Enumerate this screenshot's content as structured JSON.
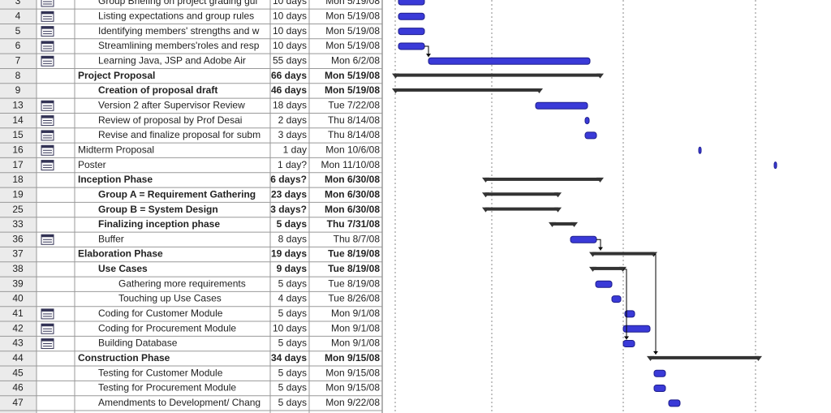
{
  "rows": [
    {
      "id": "3",
      "name": "Group Briefing on project grading gui",
      "duration": "10 days",
      "start": "Mon 5/19/08"
    },
    {
      "id": "4",
      "name": "Listing expectations and group rules",
      "duration": "10 days",
      "start": "Mon 5/19/08"
    },
    {
      "id": "5",
      "name": "Identifying members' strengths and w",
      "duration": "10 days",
      "start": "Mon 5/19/08"
    },
    {
      "id": "6",
      "name": "Streamlining members'roles and resp",
      "duration": "10 days",
      "start": "Mon 5/19/08"
    },
    {
      "id": "7",
      "name": "Learning Java, JSP and Adobe Air",
      "duration": "55 days",
      "start": "Mon 6/2/08"
    },
    {
      "id": "8",
      "name": "Project Proposal",
      "duration": "66 days",
      "start": "Mon 5/19/08"
    },
    {
      "id": "9",
      "name": "Creation of proposal draft",
      "duration": "46 days",
      "start": "Mon 5/19/08"
    },
    {
      "id": "13",
      "name": "Version 2 after Supervisor Review",
      "duration": "18 days",
      "start": "Tue 7/22/08"
    },
    {
      "id": "14",
      "name": "Review of proposal by Prof Desai",
      "duration": "2 days",
      "start": "Thu 8/14/08"
    },
    {
      "id": "15",
      "name": "Revise and finalize proposal for subm",
      "duration": "3 days",
      "start": "Thu 8/14/08"
    },
    {
      "id": "16",
      "name": "Midterm Proposal",
      "duration": "1 day",
      "start": "Mon 10/6/08"
    },
    {
      "id": "17",
      "name": "Poster",
      "duration": "1 day?",
      "start": "Mon 11/10/08"
    },
    {
      "id": "18",
      "name": "Inception Phase",
      "duration": "6 days?",
      "start": "Mon 6/30/08"
    },
    {
      "id": "19",
      "name": "Group A = Requirement Gathering",
      "duration": "23 days",
      "start": "Mon 6/30/08"
    },
    {
      "id": "25",
      "name": "Group B = System Design",
      "duration": "3 days?",
      "start": "Mon 6/30/08"
    },
    {
      "id": "33",
      "name": "Finalizing inception phase",
      "duration": "5 days",
      "start": "Thu 7/31/08"
    },
    {
      "id": "36",
      "name": "Buffer",
      "duration": "8 days",
      "start": "Thu 8/7/08"
    },
    {
      "id": "37",
      "name": "Elaboration Phase",
      "duration": "19 days",
      "start": "Tue 8/19/08"
    },
    {
      "id": "38",
      "name": "Use Cases",
      "duration": "9 days",
      "start": "Tue 8/19/08"
    },
    {
      "id": "39",
      "name": "Gathering more requirements",
      "duration": "5 days",
      "start": "Tue 8/19/08"
    },
    {
      "id": "40",
      "name": "Touching up Use Cases",
      "duration": "4 days",
      "start": "Tue 8/26/08"
    },
    {
      "id": "41",
      "name": "Coding for Customer Module",
      "duration": "5 days",
      "start": "Mon 9/1/08"
    },
    {
      "id": "42",
      "name": "Coding for Procurement Module",
      "duration": "10 days",
      "start": "Mon 9/1/08"
    },
    {
      "id": "43",
      "name": "Building Database",
      "duration": "5 days",
      "start": "Mon 9/1/08"
    },
    {
      "id": "44",
      "name": "Construction Phase",
      "duration": "34 days",
      "start": "Mon 9/15/08"
    },
    {
      "id": "45",
      "name": "Testing for Customer Module",
      "duration": "5 days",
      "start": "Mon 9/15/08"
    },
    {
      "id": "46",
      "name": "Testing for Procurement Module",
      "duration": "5 days",
      "start": "Mon 9/15/08"
    },
    {
      "id": "47",
      "name": "Amendments to Development/ Chang",
      "duration": "5 days",
      "start": "Mon 9/22/08"
    }
  ]
}
